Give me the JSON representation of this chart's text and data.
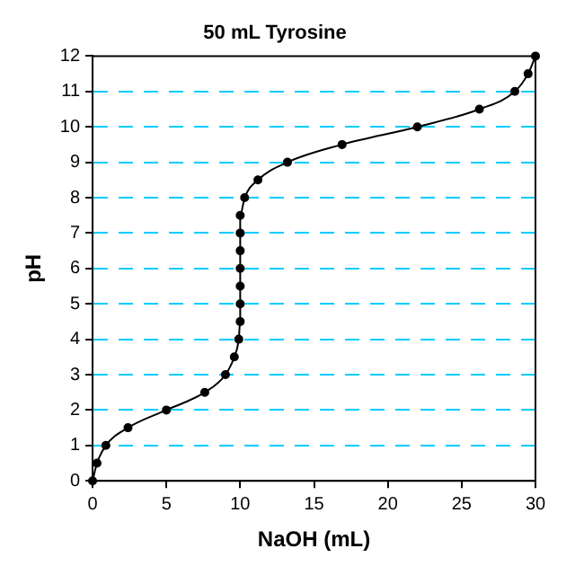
{
  "chart_data": {
    "type": "line",
    "title": "50 mL Tyrosine",
    "xlabel": "NaOH (mL)",
    "ylabel": "pH",
    "x": [
      0,
      0.3,
      0.9,
      2.4,
      5.0,
      7.6,
      9.0,
      9.6,
      9.9,
      10.0,
      10.0,
      10.0,
      10.0,
      10.0,
      10.0,
      10.0,
      10.3,
      11.2,
      13.2,
      16.9,
      22.0,
      26.2,
      28.6,
      29.5,
      30
    ],
    "series": [
      {
        "color": "#000000",
        "values": [
          0,
          0.5,
          1.0,
          1.5,
          2.0,
          2.5,
          3.0,
          3.5,
          4.0,
          4.5,
          5.0,
          5.5,
          6.0,
          6.5,
          7.0,
          7.5,
          8.0,
          8.5,
          9.0,
          9.5,
          10.0,
          10.5,
          11.0,
          11.5,
          12.0
        ]
      }
    ],
    "xlim": [
      0,
      30
    ],
    "xticks": [
      0,
      5,
      10,
      15,
      20,
      25,
      30
    ],
    "ylim": [
      0,
      12
    ],
    "yticks": [
      0,
      1,
      2,
      3,
      4,
      5,
      6,
      7,
      8,
      9,
      10,
      11,
      12
    ],
    "grid": "y",
    "legend": false,
    "marker": "circle",
    "line_style": "solid"
  }
}
